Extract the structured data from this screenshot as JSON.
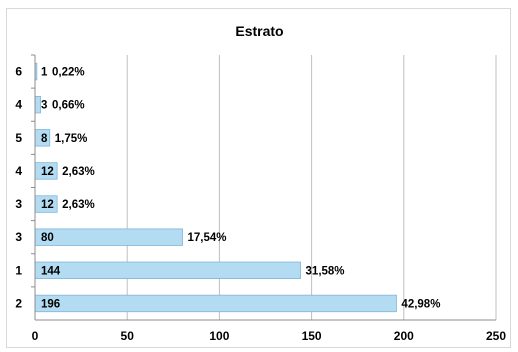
{
  "chart_data": {
    "type": "bar",
    "orientation": "horizontal",
    "title": "Estrato",
    "xlabel": "",
    "ylabel": "",
    "xlim": [
      0,
      250
    ],
    "x_ticks": [
      0,
      50,
      100,
      150,
      200,
      250
    ],
    "grid": true,
    "legend": "none",
    "categories": [
      "6",
      "4",
      "5",
      "4",
      "3",
      "3",
      "1",
      "2"
    ],
    "values": [
      1,
      3,
      8,
      12,
      12,
      80,
      144,
      196
    ],
    "value_labels": [
      "1",
      "3",
      "8",
      "12",
      "12",
      "80",
      "144",
      "196"
    ],
    "percent_labels": [
      "0,22%",
      "0,66%",
      "1,75%",
      "2,63%",
      "2,63%",
      "17,54%",
      "31,58%",
      "42,98%"
    ],
    "colors": {
      "bar_fill": "#b3dcf2",
      "bar_stroke": "#7fb6d8",
      "grid": "#bfbfbf",
      "axis": "#8c8c8c"
    }
  }
}
